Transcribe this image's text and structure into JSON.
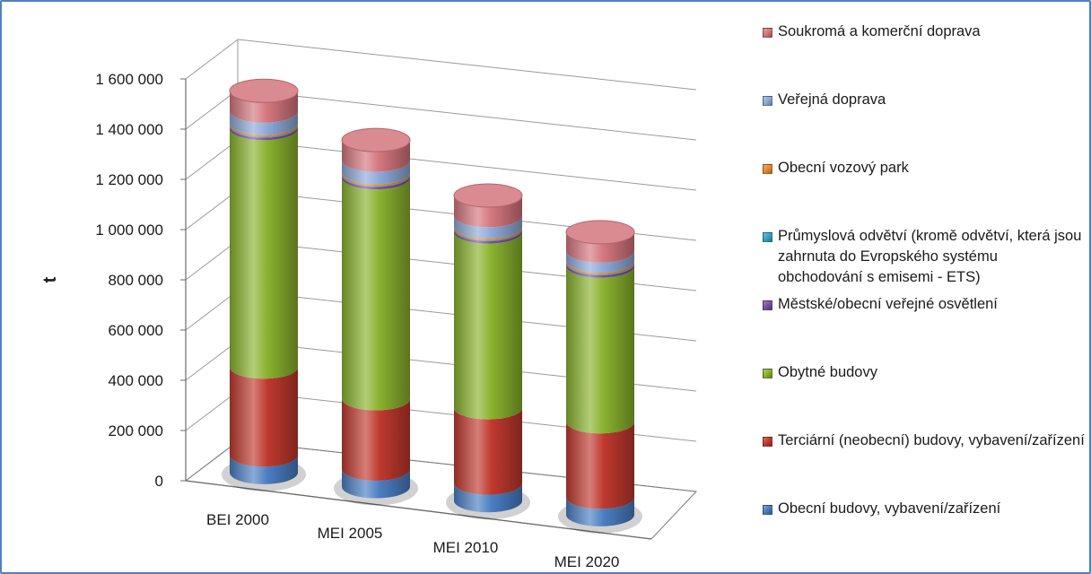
{
  "chart_data": {
    "type": "bar",
    "style": "3d-cylinder-stacked",
    "title": "",
    "xlabel": "",
    "ylabel": "t",
    "ylim": [
      0,
      1600000
    ],
    "grid": true,
    "legend_position": "right",
    "yticks": [
      "0",
      "200 000",
      "400 000",
      "600 000",
      "800 000",
      "1 000 000",
      "1 200 000",
      "1 400 000",
      "1 600 000"
    ],
    "categories": [
      "BEI 2000",
      "MEI 2005",
      "MEI 2010",
      "MEI 2020"
    ],
    "series": [
      {
        "name": "Obecní budovy, vybavení/zařízení",
        "color": "#4a7ec2",
        "values": [
          70000,
          70000,
          70000,
          70000
        ]
      },
      {
        "name": "Terciární (neobecní) budovy, vybavení/zařízení",
        "color": "#c0392e",
        "values": [
          350000,
          280000,
          300000,
          300000
        ]
      },
      {
        "name": "Obytné budovy",
        "color": "#8ab22e",
        "values": [
          950000,
          880000,
          700000,
          620000
        ]
      },
      {
        "name": "Městské/obecní veřejné osvětlení",
        "color": "#7a4fa3",
        "values": [
          10000,
          10000,
          10000,
          10000
        ]
      },
      {
        "name": "Průmyslová odvětví (kromě odvětví, která jsou zahrnuta do Evropského systému obchodování s emisemi - ETS)",
        "color": "#33a3c4",
        "values": [
          3000,
          3000,
          3000,
          3000
        ]
      },
      {
        "name": "Obecní vozový park",
        "color": "#e8892d",
        "values": [
          7000,
          7000,
          7000,
          7000
        ]
      },
      {
        "name": "Veřejná doprava",
        "color": "#8ea9d8",
        "values": [
          50000,
          50000,
          45000,
          40000
        ]
      },
      {
        "name": "Soukromá a komerční doprava",
        "color": "#d4767d",
        "values": [
          80000,
          80000,
          80000,
          75000
        ]
      }
    ]
  }
}
